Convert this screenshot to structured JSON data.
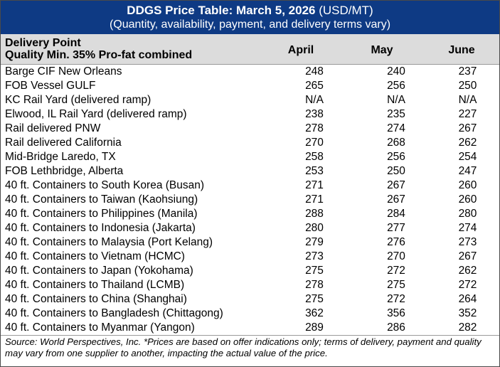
{
  "title": {
    "bold": "DDGS Price Table: March 5, 2026",
    "units": " (USD/MT)",
    "subtitle": "(Quantity, availability, payment, and delivery terms vary)"
  },
  "header": {
    "delivery_point": "Delivery Point",
    "quality": "Quality Min. 35% Pro-fat combined",
    "months": [
      "April",
      "May",
      "June"
    ]
  },
  "rows": [
    {
      "name": "Barge CIF New Orleans",
      "april": "248",
      "may": "240",
      "june": "237"
    },
    {
      "name": "FOB Vessel GULF",
      "april": "265",
      "may": "256",
      "june": "250"
    },
    {
      "name": "KC Rail Yard (delivered ramp)",
      "april": "N/A",
      "may": "N/A",
      "june": "N/A"
    },
    {
      "name": "Elwood, IL Rail Yard (delivered ramp)",
      "april": "238",
      "may": "235",
      "june": "227"
    },
    {
      "name": "Rail delivered PNW",
      "april": "278",
      "may": "274",
      "june": "267"
    },
    {
      "name": "Rail delivered California",
      "april": "270",
      "may": "268",
      "june": "262"
    },
    {
      "name": "Mid-Bridge Laredo, TX",
      "april": "258",
      "may": "256",
      "june": "254"
    },
    {
      "name": "FOB Lethbridge, Alberta",
      "april": "253",
      "may": "250",
      "june": "247"
    },
    {
      "name": "40 ft. Containers to South Korea (Busan)",
      "april": "271",
      "may": "267",
      "june": "260"
    },
    {
      "name": "40 ft. Containers to Taiwan (Kaohsiung)",
      "april": "271",
      "may": "267",
      "june": "260"
    },
    {
      "name": "40 ft. Containers to Philippines (Manila)",
      "april": "288",
      "may": "284",
      "june": "280"
    },
    {
      "name": "40 ft. Containers to Indonesia (Jakarta)",
      "april": "280",
      "may": "277",
      "june": "274"
    },
    {
      "name": "40 ft. Containers to Malaysia (Port Kelang)",
      "april": "279",
      "may": "276",
      "june": "273"
    },
    {
      "name": "40 ft. Containers to Vietnam (HCMC)",
      "april": "273",
      "may": "270",
      "june": "267"
    },
    {
      "name": "40 ft. Containers to Japan (Yokohama)",
      "april": "275",
      "may": "272",
      "june": "262"
    },
    {
      "name": "40 ft. Containers to Thailand (LCMB)",
      "april": "278",
      "may": "275",
      "june": "272"
    },
    {
      "name": "40 ft. Containers to China (Shanghai)",
      "april": "275",
      "may": "272",
      "june": "264"
    },
    {
      "name": "40 ft. Containers to Bangladesh (Chittagong)",
      "april": "362",
      "may": "356",
      "june": "352"
    },
    {
      "name": "40 ft. Containers to Myanmar (Yangon)",
      "april": "289",
      "may": "286",
      "june": "282"
    }
  ],
  "footer": "Source: World Perspectives, Inc. *Prices are based on offer indications only; terms of delivery, payment and quality may vary from one supplier to another, impacting the actual value of the price.",
  "colors": {
    "title_bg": "#0e3a84",
    "header_bg": "#dcdcdc"
  }
}
